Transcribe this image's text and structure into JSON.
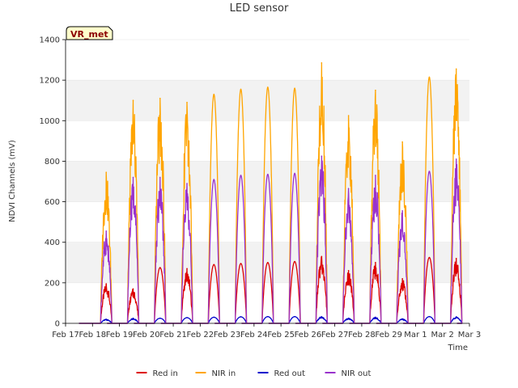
{
  "chart_data": {
    "type": "line",
    "title": "LED sensor",
    "xlabel": "Time",
    "ylabel": "NDVI Channels (mV)",
    "ylim": [
      0,
      1400
    ],
    "yticks": [
      0,
      200,
      400,
      600,
      800,
      1000,
      1200,
      1400
    ],
    "xlim": [
      0,
      15
    ],
    "xticks": [
      {
        "label": "Feb 17",
        "value": 0
      },
      {
        "label": "Feb 18",
        "value": 1
      },
      {
        "label": "Feb 19",
        "value": 2
      },
      {
        "label": "Feb 20",
        "value": 3
      },
      {
        "label": "Feb 21",
        "value": 4
      },
      {
        "label": "Feb 22",
        "value": 5
      },
      {
        "label": "Feb 23",
        "value": 6
      },
      {
        "label": "Feb 24",
        "value": 7
      },
      {
        "label": "Feb 25",
        "value": 8
      },
      {
        "label": "Feb 26",
        "value": 9
      },
      {
        "label": "Feb 27",
        "value": 10
      },
      {
        "label": "Feb 28",
        "value": 11
      },
      {
        "label": "Feb 29",
        "value": 12
      },
      {
        "label": "Mar 1",
        "value": 13
      },
      {
        "label": "Mar 2",
        "value": 14
      },
      {
        "label": "Mar 3",
        "value": 15
      }
    ],
    "badge": "VR_met",
    "grid": "horizontal bands",
    "legend_position": "bottom",
    "days": [
      1,
      2,
      3,
      4,
      5,
      6,
      7,
      8,
      9,
      10,
      11,
      12,
      13,
      14
    ],
    "series": [
      {
        "name": "Red in",
        "color": "#dd0000",
        "peaks": [
          195,
          170,
          275,
          270,
          290,
          295,
          300,
          305,
          330,
          260,
          300,
          220,
          325,
          320
        ],
        "noise": [
          1,
          1,
          0,
          1,
          0,
          0,
          0,
          0,
          1,
          1,
          1,
          1,
          0,
          1
        ]
      },
      {
        "name": "NIR in",
        "color": "#ffa500",
        "peaks": [
          745,
          1100,
          1110,
          1090,
          1130,
          1155,
          1165,
          1160,
          1285,
          1025,
          1150,
          895,
          1215,
          1255
        ],
        "noise": [
          1,
          1,
          1,
          1,
          0,
          0,
          0,
          0,
          1,
          1,
          1,
          1,
          0,
          1
        ]
      },
      {
        "name": "Red out",
        "color": "#0000cc",
        "peaks": [
          20,
          25,
          25,
          28,
          30,
          32,
          33,
          33,
          33,
          25,
          30,
          22,
          33,
          32
        ],
        "noise": [
          1,
          1,
          0,
          0,
          0,
          0,
          0,
          0,
          1,
          1,
          1,
          1,
          0,
          1
        ]
      },
      {
        "name": "NIR out",
        "color": "#9932cc",
        "peaks": [
          455,
          720,
          720,
          690,
          710,
          730,
          735,
          740,
          825,
          665,
          730,
          555,
          750,
          810
        ],
        "noise": [
          1,
          1,
          1,
          1,
          0,
          0,
          0,
          0,
          1,
          1,
          1,
          1,
          0,
          1
        ]
      }
    ]
  }
}
